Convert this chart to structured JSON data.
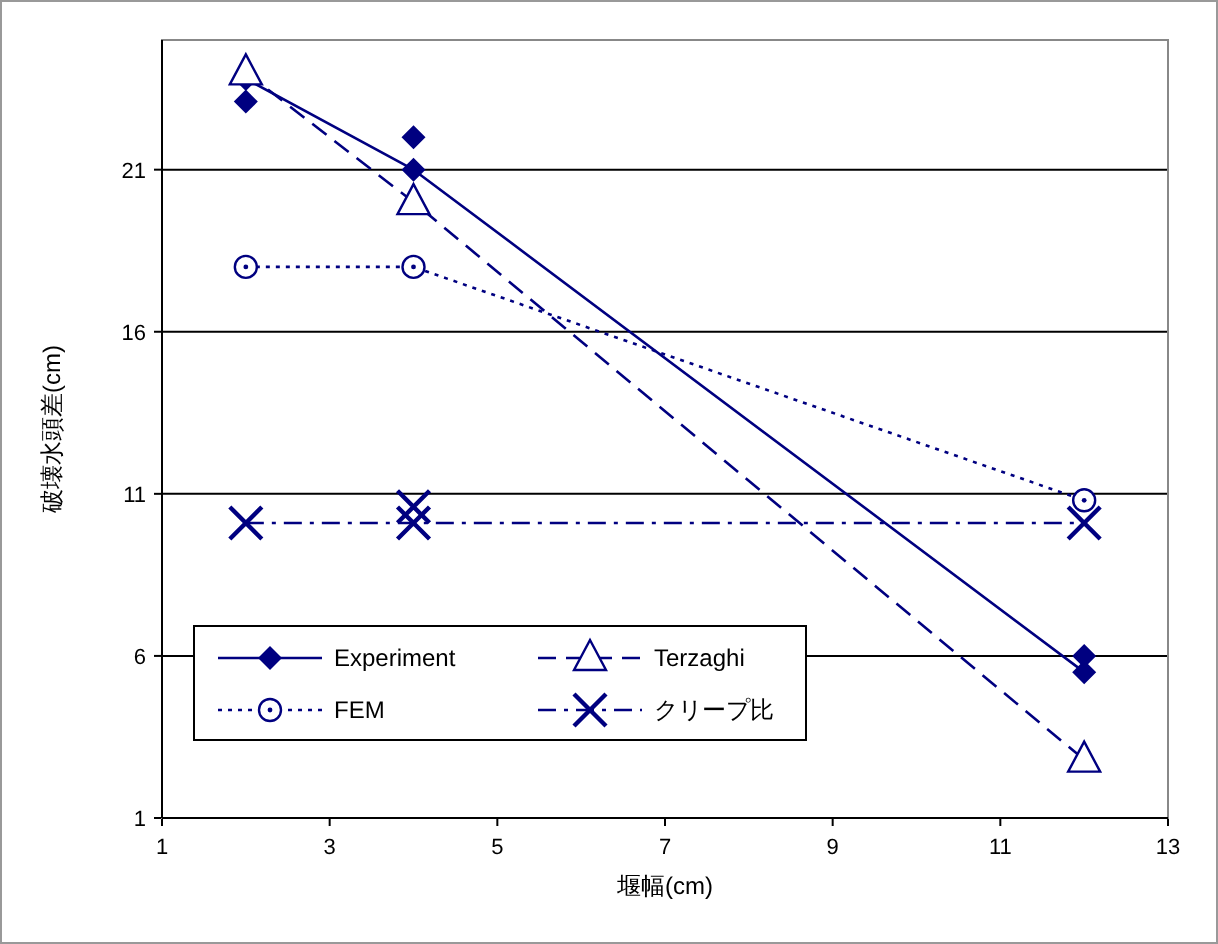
{
  "chart_data": {
    "type": "line",
    "xlabel": "堰幅(cm)",
    "ylabel": "破壊水頭差(cm)",
    "xlim": [
      1,
      13
    ],
    "xticks": [
      1,
      3,
      5,
      7,
      9,
      11,
      13
    ],
    "ylim": [
      1,
      25
    ],
    "yticks": [
      1,
      6,
      11,
      16,
      21
    ],
    "grid": "y",
    "legend": "bottom left",
    "series": [
      {
        "name": "Experiment",
        "color": "#000080",
        "marker": "diamond",
        "line_style": "solid",
        "x": [
          2,
          4,
          12
        ],
        "values": [
          23.8,
          21,
          5.5
        ]
      },
      {
        "type": "scatter",
        "color": "#000080",
        "marker": "diamond",
        "x": [
          2,
          4,
          12
        ],
        "values": [
          23.1,
          22,
          6
        ]
      },
      {
        "name": "Terzaghi",
        "color": "#000080",
        "marker": "triangle",
        "line_style": "dashed",
        "x": [
          2,
          4,
          12
        ],
        "values": [
          24,
          20,
          2.8
        ]
      },
      {
        "name": "FEM",
        "color": "#000080",
        "marker": "circle",
        "line_style": "dotted",
        "x": [
          2,
          4,
          12
        ],
        "values": [
          18,
          18,
          10.8
        ]
      },
      {
        "name": "クリープ比",
        "color": "#000080",
        "marker": "cross",
        "line_style": "dashdot",
        "x": [
          2,
          4,
          12
        ],
        "values": [
          10.1,
          10.1,
          10.1
        ]
      },
      {
        "type": "scatter",
        "color": "#000080",
        "marker": "cross",
        "x": [
          4
        ],
        "values": [
          10.6
        ]
      }
    ]
  }
}
